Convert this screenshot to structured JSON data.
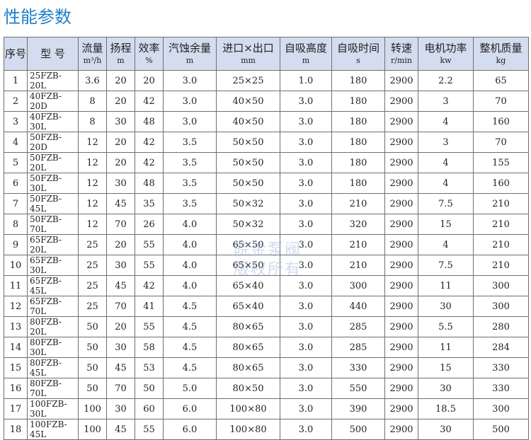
{
  "title": "性能参数",
  "watermark": [
    "皖金泵阀",
    "版权所有"
  ],
  "headers": [
    {
      "t": "序号",
      "u": ""
    },
    {
      "t": "型 号",
      "u": ""
    },
    {
      "t": "流量",
      "u": "m³/h"
    },
    {
      "t": "扬程",
      "u": "m"
    },
    {
      "t": "效率",
      "u": "%"
    },
    {
      "t": "汽蚀余量",
      "u": "m"
    },
    {
      "t": "进口×出口",
      "u": "mm"
    },
    {
      "t": "自吸高度",
      "u": "m"
    },
    {
      "t": "自吸时间",
      "u": "s"
    },
    {
      "t": "转速",
      "u": "r/min"
    },
    {
      "t": "电机功率",
      "u": "kw"
    },
    {
      "t": "整机质量",
      "u": "kg"
    }
  ],
  "rows": [
    [
      "1",
      "25FZB-20L",
      "3.6",
      "20",
      "20",
      "3.0",
      "25×25",
      "1.0",
      "180",
      "2900",
      "2.2",
      "65"
    ],
    [
      "2",
      "40FZB-20D",
      "8",
      "20",
      "42",
      "3.0",
      "40×50",
      "3.0",
      "180",
      "2900",
      "3",
      "70"
    ],
    [
      "3",
      "40FZB-30L",
      "8",
      "30",
      "48",
      "3.0",
      "40×50",
      "3.0",
      "180",
      "2900",
      "4",
      "160"
    ],
    [
      "4",
      "50FZB-20D",
      "12",
      "20",
      "42",
      "3.5",
      "50×50",
      "3.0",
      "180",
      "2900",
      "3",
      "70"
    ],
    [
      "5",
      "50FZB-20L",
      "12",
      "20",
      "42",
      "3.5",
      "50×50",
      "3.0",
      "180",
      "2900",
      "4",
      "155"
    ],
    [
      "6",
      "50FZB-30L",
      "12",
      "30",
      "48",
      "3.5",
      "50×50",
      "3.0",
      "180",
      "2900",
      "4",
      "160"
    ],
    [
      "7",
      "50FZB-45L",
      "12",
      "45",
      "35",
      "3.5",
      "50×32",
      "3.0",
      "210",
      "2900",
      "7.5",
      "210"
    ],
    [
      "8",
      "50FZB-70L",
      "12",
      "70",
      "26",
      "4.0",
      "50×32",
      "3.0",
      "320",
      "2900",
      "15",
      "210"
    ],
    [
      "9",
      "65FZB-20L",
      "25",
      "20",
      "55",
      "4.0",
      "65×50",
      "3.0",
      "210",
      "2900",
      "4",
      "210"
    ],
    [
      "10",
      "65FZB-30L",
      "25",
      "30",
      "55",
      "4.0",
      "65×50",
      "3.0",
      "210",
      "2900",
      "7.5",
      "210"
    ],
    [
      "11",
      "65FZB-45L",
      "25",
      "45",
      "42",
      "4.0",
      "65×40",
      "3.0",
      "300",
      "2900",
      "11",
      "300"
    ],
    [
      "12",
      "65FZB-70L",
      "25",
      "70",
      "41",
      "4.5",
      "65×40",
      "3.0",
      "440",
      "2900",
      "30",
      "300"
    ],
    [
      "13",
      "80FZB-20L",
      "50",
      "20",
      "55",
      "4.5",
      "80×65",
      "3.0",
      "285",
      "2900",
      "5.5",
      "280"
    ],
    [
      "14",
      "80FZB-30L",
      "50",
      "30",
      "58",
      "4.5",
      "80×65",
      "3.0",
      "285",
      "2900",
      "11",
      "284"
    ],
    [
      "15",
      "80FZB-45L",
      "50",
      "45",
      "53",
      "4.5",
      "80×65",
      "3.0",
      "330",
      "2900",
      "15",
      "330"
    ],
    [
      "16",
      "80FZB-70L",
      "50",
      "70",
      "50",
      "5.0",
      "80×50",
      "3.0",
      "550",
      "2900",
      "30",
      "330"
    ],
    [
      "17",
      "100FZB-30L",
      "100",
      "30",
      "60",
      "6.0",
      "100×80",
      "3.0",
      "390",
      "2900",
      "18.5",
      "300"
    ],
    [
      "18",
      "100FZB-45L",
      "100",
      "45",
      "55",
      "6.0",
      "100×80",
      "3.0",
      "500",
      "2900",
      "30",
      "500"
    ]
  ]
}
